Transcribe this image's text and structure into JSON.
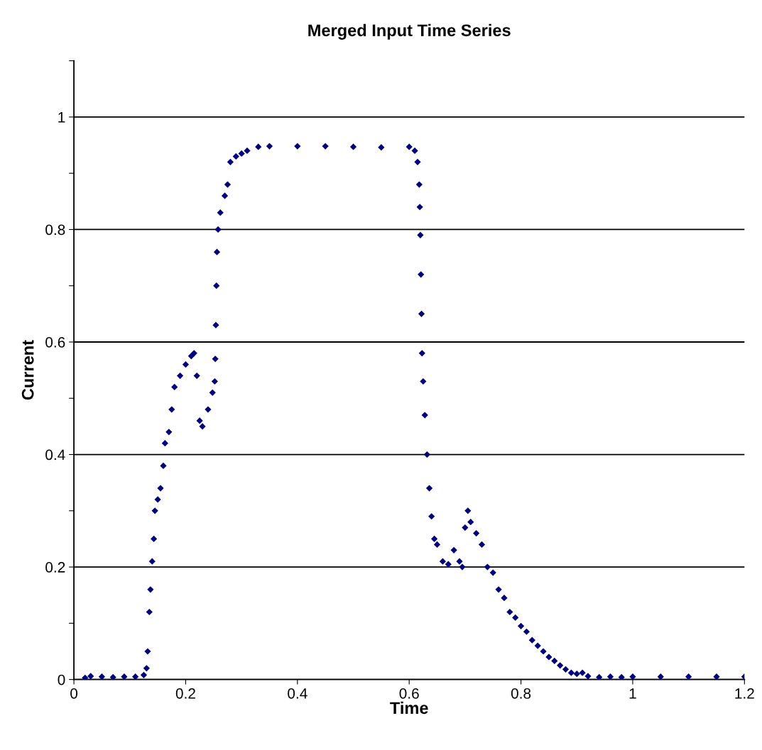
{
  "chart_data": {
    "type": "scatter",
    "title": "Merged Input Time Series",
    "xlabel": "Time",
    "ylabel": "Current",
    "marker": "diamond",
    "grid": "y",
    "xlim": [
      0,
      1.2
    ],
    "xticks": [
      0,
      0.2,
      0.4,
      0.6,
      0.8,
      1,
      1.2
    ],
    "ylim": [
      0,
      1.1
    ],
    "yticks": [
      0,
      {
        "value": 0.1,
        "label": null
      },
      0.2,
      {
        "value": 0.3,
        "label": null
      },
      0.4,
      {
        "value": 0.5,
        "label": null
      },
      0.6,
      {
        "value": 0.7,
        "label": null
      },
      0.8,
      {
        "value": 0.9,
        "label": null
      },
      1,
      {
        "value": 1.1,
        "label": null
      }
    ],
    "series": [
      {
        "color": "#000080",
        "x": [
          0.02,
          0.03,
          0.05,
          0.07,
          0.09,
          0.11,
          0.125,
          0.13,
          0.132,
          0.135,
          0.137,
          0.14,
          0.143,
          0.145,
          0.15,
          0.155,
          0.16,
          0.163,
          0.17,
          0.175,
          0.18,
          0.19,
          0.2,
          0.21,
          0.215,
          0.22,
          0.225,
          0.23,
          0.24,
          0.248,
          0.252,
          0.253,
          0.254,
          0.255,
          0.256,
          0.258,
          0.262,
          0.27,
          0.275,
          0.28,
          0.29,
          0.3,
          0.31,
          0.33,
          0.35,
          0.4,
          0.45,
          0.5,
          0.55,
          0.6,
          0.61,
          0.615,
          0.618,
          0.619,
          0.62,
          0.621,
          0.622,
          0.623,
          0.625,
          0.628,
          0.632,
          0.636,
          0.64,
          0.645,
          0.65,
          0.66,
          0.67,
          0.68,
          0.69,
          0.695,
          0.7,
          0.705,
          0.71,
          0.72,
          0.73,
          0.74,
          0.75,
          0.76,
          0.77,
          0.78,
          0.79,
          0.8,
          0.81,
          0.82,
          0.83,
          0.84,
          0.85,
          0.86,
          0.87,
          0.88,
          0.89,
          0.9,
          0.91,
          0.92,
          0.94,
          0.96,
          0.98,
          1.0,
          1.05,
          1.1,
          1.15,
          1.2
        ],
        "values": [
          0.003,
          0.006,
          0.005,
          0.004,
          0.005,
          0.005,
          0.008,
          0.02,
          0.05,
          0.12,
          0.16,
          0.21,
          0.25,
          0.3,
          0.32,
          0.34,
          0.38,
          0.42,
          0.44,
          0.48,
          0.52,
          0.54,
          0.56,
          0.575,
          0.58,
          0.54,
          0.46,
          0.45,
          0.48,
          0.51,
          0.53,
          0.57,
          0.63,
          0.7,
          0.76,
          0.8,
          0.83,
          0.86,
          0.88,
          0.92,
          0.93,
          0.935,
          0.94,
          0.947,
          0.948,
          0.948,
          0.948,
          0.947,
          0.946,
          0.947,
          0.94,
          0.92,
          0.88,
          0.84,
          0.79,
          0.72,
          0.65,
          0.58,
          0.53,
          0.47,
          0.4,
          0.34,
          0.29,
          0.25,
          0.24,
          0.21,
          0.205,
          0.23,
          0.21,
          0.2,
          0.27,
          0.3,
          0.28,
          0.26,
          0.24,
          0.2,
          0.19,
          0.16,
          0.145,
          0.12,
          0.11,
          0.095,
          0.085,
          0.07,
          0.06,
          0.05,
          0.04,
          0.033,
          0.025,
          0.018,
          0.012,
          0.01,
          0.012,
          0.006,
          0.004,
          0.005,
          0.004,
          0.005,
          0.005,
          0.005,
          0.005,
          0.005
        ]
      }
    ]
  }
}
